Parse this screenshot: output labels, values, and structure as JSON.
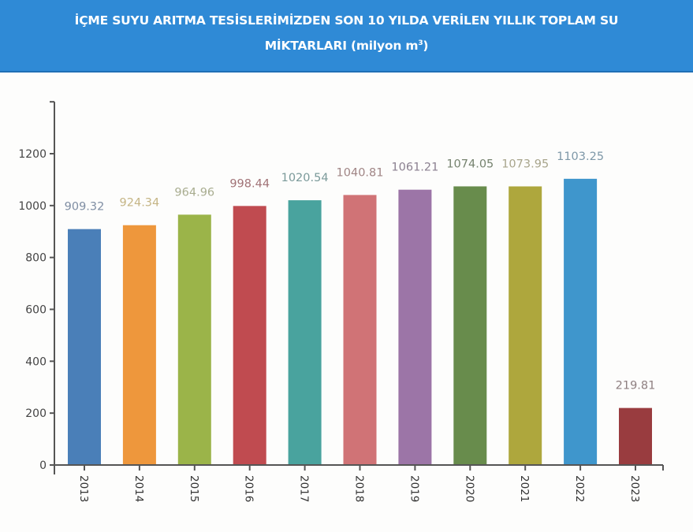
{
  "header": {
    "title_line1": "İÇME SUYU ARITMA TESİSLERİMİZDEN SON 10 YILDA VERİLEN YILLIK TOPLAM SU",
    "title_line2_main": "MİKTARLARI (milyon m",
    "title_line2_sup": "3",
    "title_line2_end": ")",
    "background_color": "#2f8ad6"
  },
  "chart_data": {
    "type": "bar",
    "title": "İÇME SUYU ARITMA TESİSLERİMİZDEN SON 10 YILDA VERİLEN YILLIK TOPLAM SU MİKTARLARI (milyon m³)",
    "xlabel": "",
    "ylabel": "",
    "ylim": [
      0,
      1400
    ],
    "yticks": [
      0,
      200,
      400,
      600,
      800,
      1000,
      1200
    ],
    "grid": false,
    "legend": null,
    "categories": [
      "2013",
      "2014",
      "2015",
      "2016",
      "2017",
      "2018",
      "2019",
      "2020",
      "2021",
      "2022",
      "2023"
    ],
    "values": [
      909.32,
      924.34,
      964.96,
      998.44,
      1020.54,
      1040.81,
      1061.21,
      1074.05,
      1073.95,
      1103.25,
      219.81
    ],
    "data_labels": [
      "909.32",
      "924.34",
      "964.96",
      "998.44",
      "1020.54",
      "1040.81",
      "1061.21",
      "1074.05",
      "1073.95",
      "1103.25",
      "219.81"
    ],
    "bar_colors": [
      "#4a7fb8",
      "#ee973c",
      "#9bb449",
      "#c04b50",
      "#49a39e",
      "#d07376",
      "#9c75a7",
      "#688c4c",
      "#aea73d",
      "#3f96cc",
      "#993c3f"
    ],
    "label_colors": [
      "#7f8ea3",
      "#c5b585",
      "#a9ad90",
      "#a17377",
      "#7b9a9a",
      "#a08585",
      "#8b8090",
      "#76836f",
      "#a8a58c",
      "#7e98a8",
      "#8e7f80"
    ]
  }
}
